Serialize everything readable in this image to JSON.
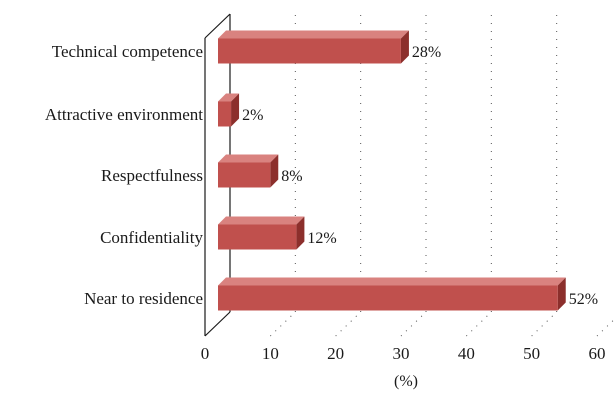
{
  "chart_data": {
    "type": "bar",
    "orientation": "horizontal",
    "style": "3d",
    "categories": [
      "Technical competence",
      "Attractive environment",
      "Respectfulness",
      "Confidentiality",
      "Near to residence"
    ],
    "values": [
      28,
      2,
      8,
      12,
      52
    ],
    "data_labels": [
      "28%",
      "2%",
      "8%",
      "12%",
      "52%"
    ],
    "xlabel": "(%)",
    "xlim": [
      0,
      60
    ],
    "xticks": [
      0,
      10,
      20,
      30,
      40,
      50,
      60
    ],
    "xtick_labels": [
      "0",
      "10",
      "20",
      "30",
      "40",
      "50",
      "60"
    ],
    "grid": "dotted vertical",
    "legend": "none",
    "colors": {
      "bar_front": "#c0504d",
      "bar_top": "#d9827f",
      "bar_side": "#8c2f2c",
      "axis": "#1a1a1a",
      "grid": "#555555"
    }
  }
}
